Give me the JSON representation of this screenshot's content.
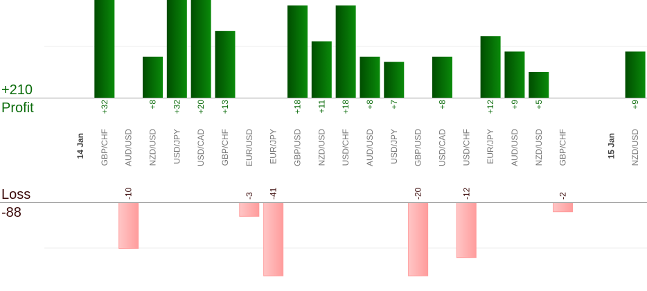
{
  "summary": {
    "profit_total": "+210",
    "profit_label": "Profit",
    "loss_label": "Loss",
    "loss_total": "-88"
  },
  "colors": {
    "profit_bar_dark": "#004d00",
    "profit_bar_light": "#0a8a0a",
    "profit_text": "#0a6b0a",
    "loss_bar_light": "#ffc6c6",
    "loss_bar_dark": "#ff9c9c",
    "loss_text": "#3b0a0a",
    "pair_text": "#777777",
    "date_text": "#444444"
  },
  "chart_data": {
    "type": "bar",
    "categories": [
      {
        "label": "14 Jan",
        "is_date": true
      },
      {
        "label": "GBP/CHF",
        "value": 32
      },
      {
        "label": "AUD/USD",
        "value": -10
      },
      {
        "label": "NZD/USD",
        "value": 8
      },
      {
        "label": "USD/JPY",
        "value": 32
      },
      {
        "label": "USD/CAD",
        "value": 20
      },
      {
        "label": "GBP/CHF",
        "value": 13
      },
      {
        "label": "EUR/USD",
        "value": -3
      },
      {
        "label": "EUR/JPY",
        "value": -41
      },
      {
        "label": "GBP/USD",
        "value": 18
      },
      {
        "label": "NZD/USD",
        "value": 11
      },
      {
        "label": "USD/CHF",
        "value": 18
      },
      {
        "label": "AUD/USD",
        "value": 8
      },
      {
        "label": "USD/JPY",
        "value": 7
      },
      {
        "label": "GBP/USD",
        "value": -20
      },
      {
        "label": "USD/CAD",
        "value": 8
      },
      {
        "label": "USD/CHF",
        "value": -12
      },
      {
        "label": "EUR/JPY",
        "value": 12
      },
      {
        "label": "AUD/USD",
        "value": 9
      },
      {
        "label": "NZD/USD",
        "value": 5
      },
      {
        "label": "GBP/CHF",
        "value": -2
      },
      {
        "label": "",
        "is_spacer": true
      },
      {
        "label": "15 Jan",
        "is_date": true
      },
      {
        "label": "NZD/USD",
        "value": 9
      }
    ],
    "profit_ylim": [
      0,
      19.5
    ],
    "loss_ylim": [
      -16,
      0
    ],
    "grid": true
  }
}
